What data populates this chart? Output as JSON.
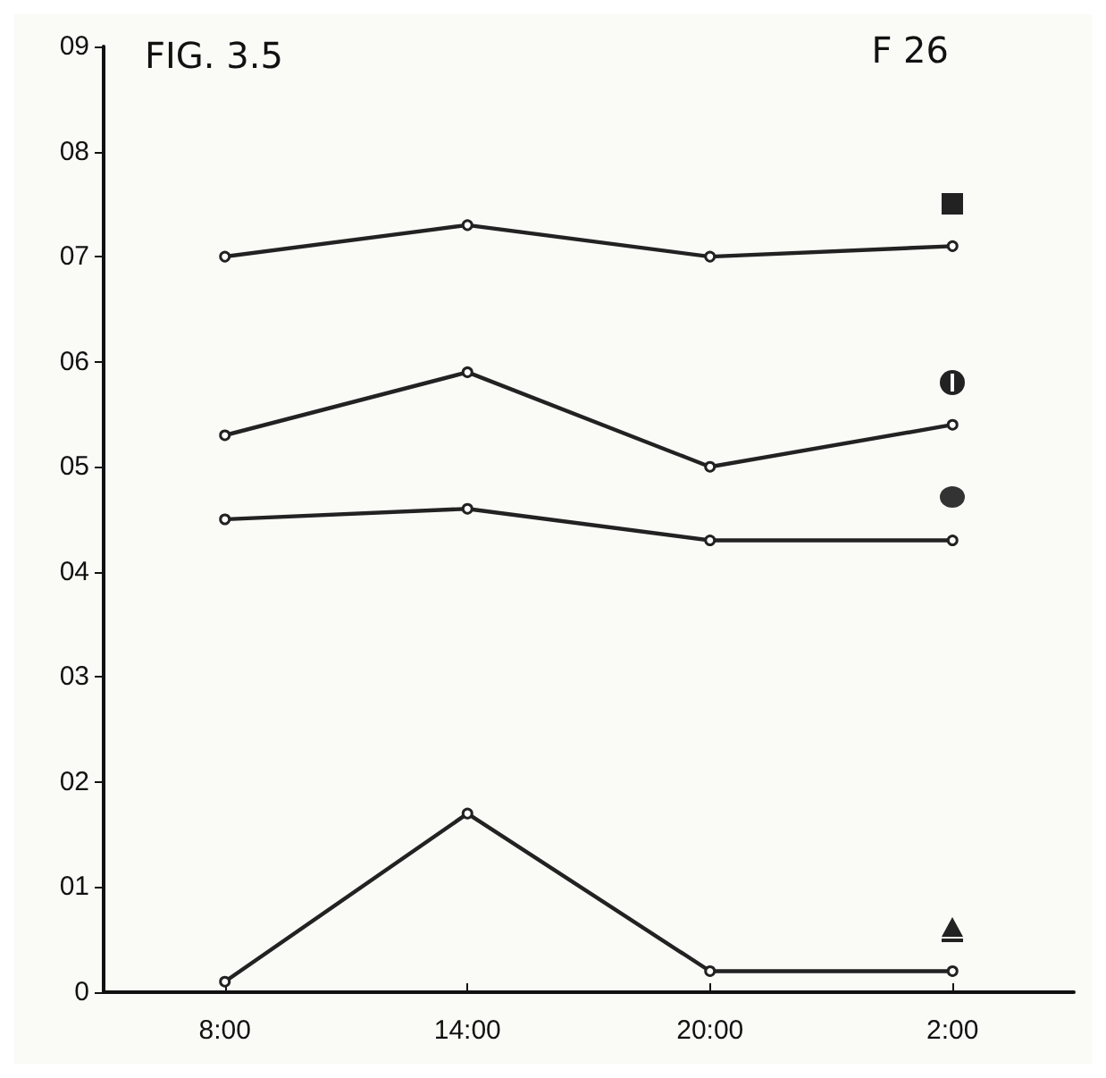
{
  "chart_data": {
    "type": "line",
    "title": "FIG. 3.5",
    "annotations": [
      "F 26"
    ],
    "categories": [
      "8:00",
      "14:00",
      "20:00",
      "2:00"
    ],
    "ylim": [
      0,
      9
    ],
    "yticks": [
      0,
      {
        "value": 1,
        "label": "01"
      },
      {
        "value": 2,
        "label": "02"
      },
      {
        "value": 3,
        "label": "03"
      },
      {
        "value": 4,
        "label": "04"
      },
      {
        "value": 5,
        "label": "05"
      },
      {
        "value": 6,
        "label": "06"
      },
      {
        "value": 7,
        "label": "07"
      },
      {
        "value": 8,
        "label": "08"
      },
      {
        "value": 9,
        "label": "09"
      }
    ],
    "series": [
      {
        "color": "#222222",
        "values": [
          7.0,
          7.3,
          7.0,
          7.1
        ]
      },
      {
        "color": "#222222",
        "values": [
          5.3,
          5.9,
          5.0,
          5.4
        ]
      },
      {
        "color": "#222222",
        "values": [
          4.5,
          4.6,
          4.3,
          4.3
        ]
      },
      {
        "color": "#222222",
        "values": [
          0.1,
          1.7,
          0.2,
          0.2
        ]
      }
    ],
    "marker": "circle",
    "line_style": "solid",
    "grid": false
  }
}
